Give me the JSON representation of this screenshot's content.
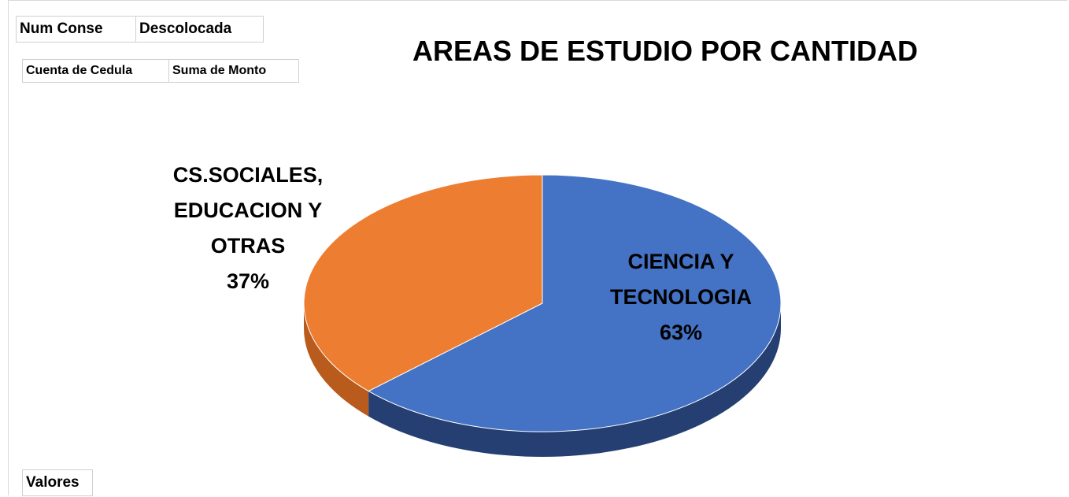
{
  "field_buttons": {
    "filters": [
      "Num Conse",
      "Descolocada"
    ],
    "values": [
      "Cuenta de Cedula",
      "Suma de Monto"
    ],
    "rows": [
      "Valores"
    ]
  },
  "chart_data": {
    "type": "pie",
    "title": "AREAS DE ESTUDIO POR CANTIDAD",
    "categories": [
      "CIENCIA Y TECNOLOGIA",
      "CS.SOCIALES, EDUCACION Y OTRAS"
    ],
    "values": [
      63,
      37
    ],
    "value_labels": [
      "63%",
      "37%"
    ],
    "colors": [
      "#4472c4",
      "#ed7d31"
    ],
    "side_colors": [
      "#263f73",
      "#b85b1c"
    ],
    "three_d": true
  }
}
